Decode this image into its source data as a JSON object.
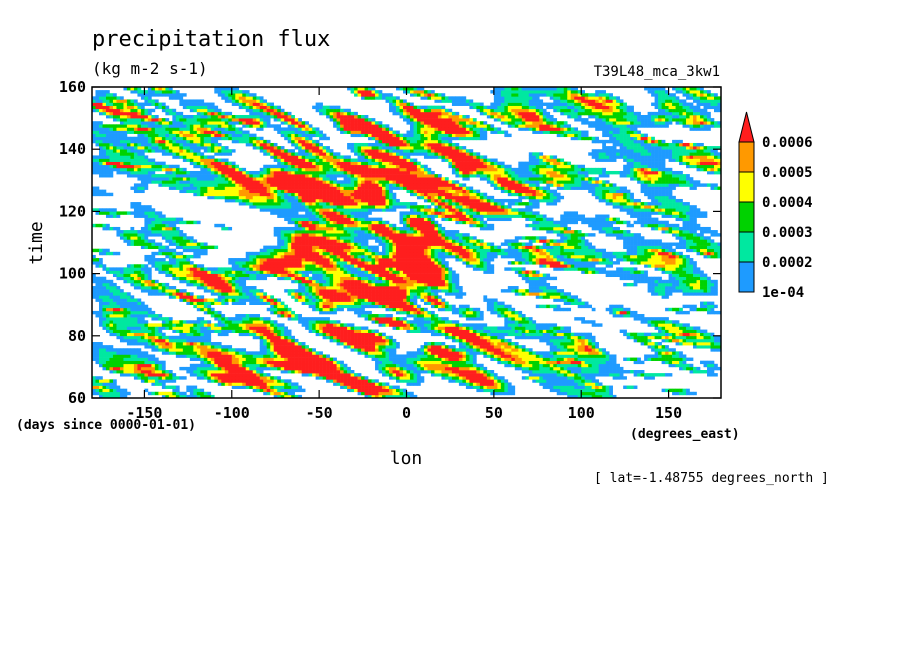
{
  "chart_data": {
    "type": "heatmap",
    "title": "precipitation flux",
    "units": "(kg m-2 s-1)",
    "run_label": "T39L48_mca_3kw1",
    "xlabel": "lon",
    "xunits": "(degrees_east)",
    "ylabel": "time",
    "yunits": "(days since 0000-01-01)",
    "annotation": "[ lat=-1.48755 degrees_north ]",
    "xlim": [
      -180,
      180
    ],
    "ylim": [
      60,
      160
    ],
    "x_ticks": [
      -150,
      -100,
      -50,
      0,
      50,
      100,
      150
    ],
    "x_tick_labels": [
      "-150",
      "-100",
      "-50",
      "0",
      "50",
      "100",
      "150"
    ],
    "y_ticks": [
      60,
      80,
      100,
      120,
      140,
      160
    ],
    "y_tick_labels": [
      "60",
      "80",
      "100",
      "120",
      "140",
      "160"
    ],
    "levels": [
      0.0001,
      0.0002,
      0.0003,
      0.0004,
      0.0005,
      0.0006
    ],
    "level_labels": [
      "1e-04",
      "0.0002",
      "0.0003",
      "0.0004",
      "0.0005",
      "0.0006"
    ],
    "level_colors": [
      "#1e9bff",
      "#00e8a0",
      "#00d200",
      "#ffff00",
      "#ff9900",
      "#ff1e1e"
    ],
    "extend": "max",
    "background_color": "#ffffff"
  }
}
